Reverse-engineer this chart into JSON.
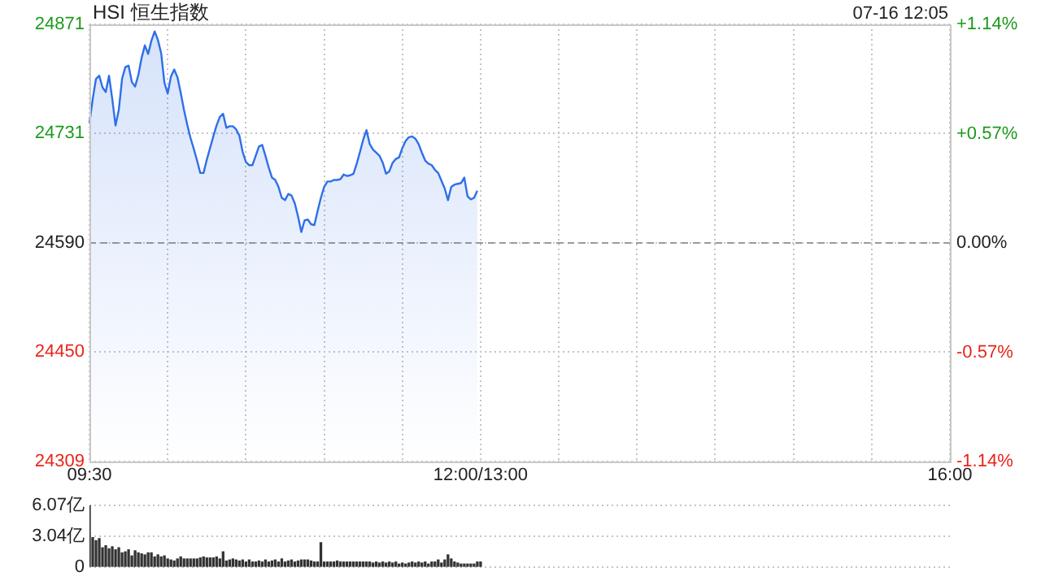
{
  "chart_data": [
    {
      "type": "area",
      "title": "HSI 恒生指数",
      "annotations": [
        "07-16 12:05"
      ],
      "categories": [
        "09:30",
        null,
        null,
        null,
        null,
        null,
        null,
        null,
        null,
        null,
        null,
        null,
        null,
        null,
        null,
        null,
        null,
        null,
        null,
        null,
        null,
        null,
        null,
        null,
        null,
        null,
        null,
        null,
        null,
        null,
        null,
        null,
        null,
        null,
        null,
        null,
        null,
        null,
        null,
        null,
        null,
        null,
        null,
        null,
        null,
        null,
        null,
        null,
        null,
        null,
        null,
        null,
        null,
        null,
        null,
        null,
        null,
        null,
        null,
        null,
        null,
        null,
        null,
        null,
        null,
        null,
        null,
        null,
        null,
        null,
        null,
        null,
        null,
        null,
        null,
        null,
        null,
        null,
        null,
        null,
        null,
        null,
        null,
        null,
        null,
        null,
        null,
        null,
        null,
        null,
        null,
        null,
        null,
        null,
        null,
        null,
        null,
        null,
        null,
        null,
        null,
        null,
        null,
        null,
        null,
        null,
        null,
        null,
        null,
        null,
        null,
        null,
        null,
        null,
        null,
        null,
        null,
        null,
        null,
        null,
        "12:00/13:00",
        null,
        null,
        null,
        null,
        null,
        null,
        null,
        null,
        null,
        null,
        null,
        null,
        null,
        null,
        null,
        null,
        null,
        null,
        null,
        null,
        null,
        null,
        null,
        null,
        null,
        null,
        null,
        null,
        null,
        null,
        null,
        null,
        null,
        null,
        null,
        null,
        null,
        null,
        null,
        null,
        null,
        null,
        null,
        null,
        null,
        null,
        null,
        null,
        null,
        null,
        null,
        null,
        null,
        null,
        null,
        null,
        null,
        null,
        null,
        null,
        null,
        null,
        null,
        null,
        null,
        null,
        null,
        null,
        null,
        null,
        null,
        null,
        null,
        null,
        null,
        null,
        null,
        null,
        null,
        null,
        null,
        null,
        null,
        null,
        null,
        null,
        null,
        null,
        null,
        null,
        null,
        null,
        null,
        null,
        null,
        null,
        null,
        null,
        null,
        null,
        null,
        null,
        null,
        null,
        null,
        null,
        null,
        null,
        null,
        null,
        null,
        null,
        null,
        null,
        null,
        null,
        null,
        null,
        null,
        null,
        null,
        null,
        null,
        null,
        null,
        null,
        null,
        null,
        null,
        null,
        null,
        null,
        null,
        null,
        null,
        null,
        null,
        null,
        null,
        null,
        null,
        null,
        null,
        "16:00"
      ],
      "series": [
        {
          "color": "#2f6fe8",
          "values": [
            24744,
            24775,
            24801,
            24805,
            24790,
            24784,
            24805,
            24775,
            24741,
            24761,
            24801,
            24816,
            24818,
            24797,
            24791,
            24806,
            24828,
            24844,
            24833,
            24850,
            24862,
            24851,
            24834,
            24796,
            24782,
            24804,
            24813,
            24803,
            24783,
            24761,
            24742,
            24725,
            24711,
            24696,
            24680,
            24680,
            24697,
            24712,
            24727,
            24741,
            24752,
            24756,
            24738,
            24740,
            24740,
            24736,
            24728,
            24707,
            24694,
            24690,
            24690,
            24702,
            24714,
            24716,
            24702,
            24687,
            24674,
            24671,
            24662,
            24648,
            24645,
            24653,
            24651,
            24641,
            24624,
            24604,
            24619,
            24620,
            24614,
            24613,
            24631,
            24648,
            24662,
            24669,
            24669,
            24671,
            24671,
            24672,
            24678,
            24676,
            24677,
            24679,
            24692,
            24707,
            24723,
            24735,
            24717,
            24710,
            24706,
            24702,
            24693,
            24679,
            24682,
            24693,
            24698,
            24700,
            24712,
            24721,
            24726,
            24727,
            24724,
            24717,
            24706,
            24696,
            24692,
            24690,
            24684,
            24680,
            24670,
            24660,
            24645,
            24662,
            24665,
            24666,
            24667,
            24674,
            24650,
            24646,
            24648,
            24657,
            null,
            null,
            null,
            null,
            null,
            null,
            null,
            null,
            null,
            null,
            null,
            null,
            null,
            null,
            null,
            null,
            null,
            null,
            null,
            null,
            null,
            null,
            null,
            null,
            null,
            null,
            null,
            null,
            null,
            null,
            null,
            null,
            null,
            null,
            null,
            null,
            null,
            null,
            null,
            null,
            null,
            null,
            null,
            null,
            null,
            null,
            null,
            null,
            null,
            null,
            null,
            null,
            null,
            null,
            null,
            null,
            null,
            null,
            null,
            null,
            null,
            null,
            null,
            null,
            null,
            null,
            null,
            null,
            null,
            null,
            null,
            null,
            null,
            null,
            null,
            null,
            null,
            null,
            null,
            null,
            null,
            null,
            null,
            null,
            null,
            null,
            null,
            null,
            null,
            null,
            null,
            null,
            null,
            null,
            null,
            null,
            null,
            null,
            null,
            null,
            null,
            null,
            null,
            null,
            null,
            null,
            null,
            null,
            null,
            null,
            null,
            null,
            null,
            null,
            null,
            null,
            null,
            null,
            null,
            null,
            null,
            null,
            null,
            null,
            null,
            null,
            null,
            null,
            null,
            null,
            null,
            null,
            null,
            null,
            null,
            null,
            null,
            null,
            null,
            null,
            null,
            null,
            null,
            null,
            null
          ]
        }
      ],
      "ylim": [
        24309,
        24871
      ],
      "yticks": [
        24309,
        24450,
        24590,
        24731,
        24871
      ],
      "y2lim": [
        -1.14,
        1.14
      ],
      "y2ticks": [
        {
          "value": -1.14,
          "label": "-1.14%"
        },
        {
          "value": -0.57,
          "label": "-0.57%"
        },
        {
          "value": 0,
          "label": "0.00%"
        },
        {
          "value": 0.57,
          "label": "+0.57%"
        },
        {
          "value": 1.14,
          "label": "+1.14%"
        }
      ],
      "ref_lines": [
        {
          "axis": "y",
          "value": 24590,
          "line_style": "dashed"
        }
      ],
      "grid": true
    },
    {
      "type": "bar",
      "color": "#333333",
      "categories": [
        null,
        null,
        null,
        null,
        null,
        null,
        null,
        null,
        null,
        null,
        null,
        null,
        null,
        null,
        null,
        null,
        null,
        null,
        null,
        null,
        null,
        null,
        null,
        null,
        null,
        null,
        null,
        null,
        null,
        null,
        null,
        null,
        null,
        null,
        null,
        null,
        null,
        null,
        null,
        null,
        null,
        null,
        null,
        null,
        null,
        null,
        null,
        null,
        null,
        null,
        null,
        null,
        null,
        null,
        null,
        null,
        null,
        null,
        null,
        null,
        null,
        null,
        null,
        null,
        null,
        null,
        null,
        null,
        null,
        null,
        null,
        null,
        null,
        null,
        null,
        null,
        null,
        null,
        null,
        null,
        null,
        null,
        null,
        null,
        null,
        null,
        null,
        null,
        null,
        null,
        null,
        null,
        null,
        null,
        null,
        null,
        null,
        null,
        null,
        null,
        null,
        null,
        null,
        null,
        null,
        null,
        null,
        null,
        null,
        null,
        null,
        null,
        null,
        null,
        null,
        null,
        null,
        null,
        null,
        null,
        null,
        null,
        null,
        null,
        null,
        null,
        null,
        null,
        null,
        null,
        null,
        null,
        null,
        null,
        null,
        null,
        null,
        null,
        null,
        null,
        null,
        null,
        null,
        null,
        null,
        null,
        null,
        null,
        null,
        null,
        null,
        null,
        null,
        null,
        null,
        null,
        null,
        null,
        null,
        null,
        null,
        null,
        null,
        null,
        null,
        null,
        null,
        null,
        null,
        null,
        null,
        null,
        null,
        null,
        null,
        null,
        null,
        null,
        null,
        null,
        null,
        null,
        null,
        null,
        null,
        null,
        null,
        null,
        null,
        null,
        null,
        null,
        null,
        null,
        null,
        null,
        null,
        null,
        null,
        null,
        null,
        null,
        null,
        null,
        null,
        null,
        null,
        null,
        null,
        null,
        null,
        null,
        null,
        null,
        null,
        null,
        null,
        null,
        null,
        null,
        null,
        null,
        null,
        null,
        null,
        null,
        null,
        null,
        null,
        null,
        null,
        null,
        null,
        null,
        null,
        null,
        null,
        null,
        null,
        null,
        null,
        null,
        null,
        null,
        null,
        null,
        null,
        null,
        null,
        null,
        null,
        null,
        null,
        null,
        null,
        null,
        null,
        null,
        null,
        null,
        null,
        null,
        null,
        null,
        null
      ],
      "values": [
        6.07,
        2.9,
        2.6,
        2.8,
        1.9,
        2.1,
        1.8,
        2,
        1.7,
        1.9,
        1.4,
        1.5,
        1.7,
        1.1,
        1.6,
        1.4,
        1.3,
        1.2,
        1.4,
        1.4,
        1,
        1.2,
        1,
        1.1,
        0.8,
        0.7,
        0.6,
        0.8,
        1,
        0.8,
        0.8,
        0.8,
        0.8,
        0.8,
        0.9,
        1,
        0.9,
        0.9,
        0.9,
        1,
        0.8,
        1.5,
        0.6,
        0.7,
        0.8,
        0.7,
        0.6,
        0.7,
        0.5,
        0.7,
        0.5,
        0.5,
        0.6,
        0.5,
        0.7,
        0.5,
        0.6,
        0.7,
        0.5,
        0.8,
        0.5,
        0.6,
        0.7,
        0.5,
        0.6,
        0.7,
        0.7,
        0.7,
        0.6,
        0.5,
        0.5,
        2.4,
        0.5,
        0.5,
        0.5,
        0.5,
        0.6,
        0.5,
        0.5,
        0.5,
        0.5,
        0.5,
        0.5,
        0.5,
        0.5,
        0.5,
        0.5,
        0.4,
        0.5,
        0.4,
        0.5,
        0.4,
        0.5,
        0.4,
        0.5,
        0.3,
        0.4,
        0.3,
        0.4,
        0.5,
        0.4,
        0.5,
        0.4,
        0.5,
        0.3,
        0.5,
        0.5,
        0.7,
        0.4,
        0.7,
        1.2,
        0.8,
        0.5,
        0.4,
        0.3,
        0.3,
        0.3,
        0.3,
        0.3,
        0.5,
        0.5,
        null,
        null,
        null,
        null,
        null,
        null,
        null,
        null,
        null,
        null,
        null,
        null,
        null,
        null,
        null,
        null,
        null,
        null,
        null,
        null,
        null,
        null,
        null,
        null,
        null,
        null,
        null,
        null,
        null,
        null,
        null,
        null,
        null,
        null,
        null,
        null,
        null,
        null,
        null,
        null,
        null,
        null,
        null,
        null,
        null,
        null,
        null,
        null,
        null,
        null,
        null,
        null,
        null,
        null,
        null,
        null,
        null,
        null,
        null,
        null,
        null,
        null,
        null,
        null,
        null,
        null,
        null,
        null,
        null,
        null,
        null,
        null,
        null,
        null,
        null,
        null,
        null,
        null,
        null,
        null,
        null,
        null,
        null,
        null,
        null,
        null,
        null,
        null,
        null,
        null,
        null,
        null,
        null,
        null,
        null,
        null,
        null,
        null,
        null,
        null,
        null,
        null,
        null,
        null,
        null,
        null,
        null,
        null,
        null,
        null,
        null,
        null,
        null,
        null,
        null,
        null,
        null,
        null,
        null,
        null,
        null,
        null,
        null,
        null,
        null,
        null,
        null,
        null,
        null,
        null,
        null,
        null,
        null,
        null,
        null,
        null,
        null,
        null,
        null,
        null,
        null,
        null,
        null,
        null
      ],
      "ylim": [
        0,
        6.07
      ],
      "yticks": [
        0,
        {
          "value": 3.04,
          "label": "3.04亿"
        },
        {
          "value": 6.07,
          "label": "6.07亿"
        }
      ],
      "grid": "y",
      "tick_labels": "y"
    }
  ]
}
